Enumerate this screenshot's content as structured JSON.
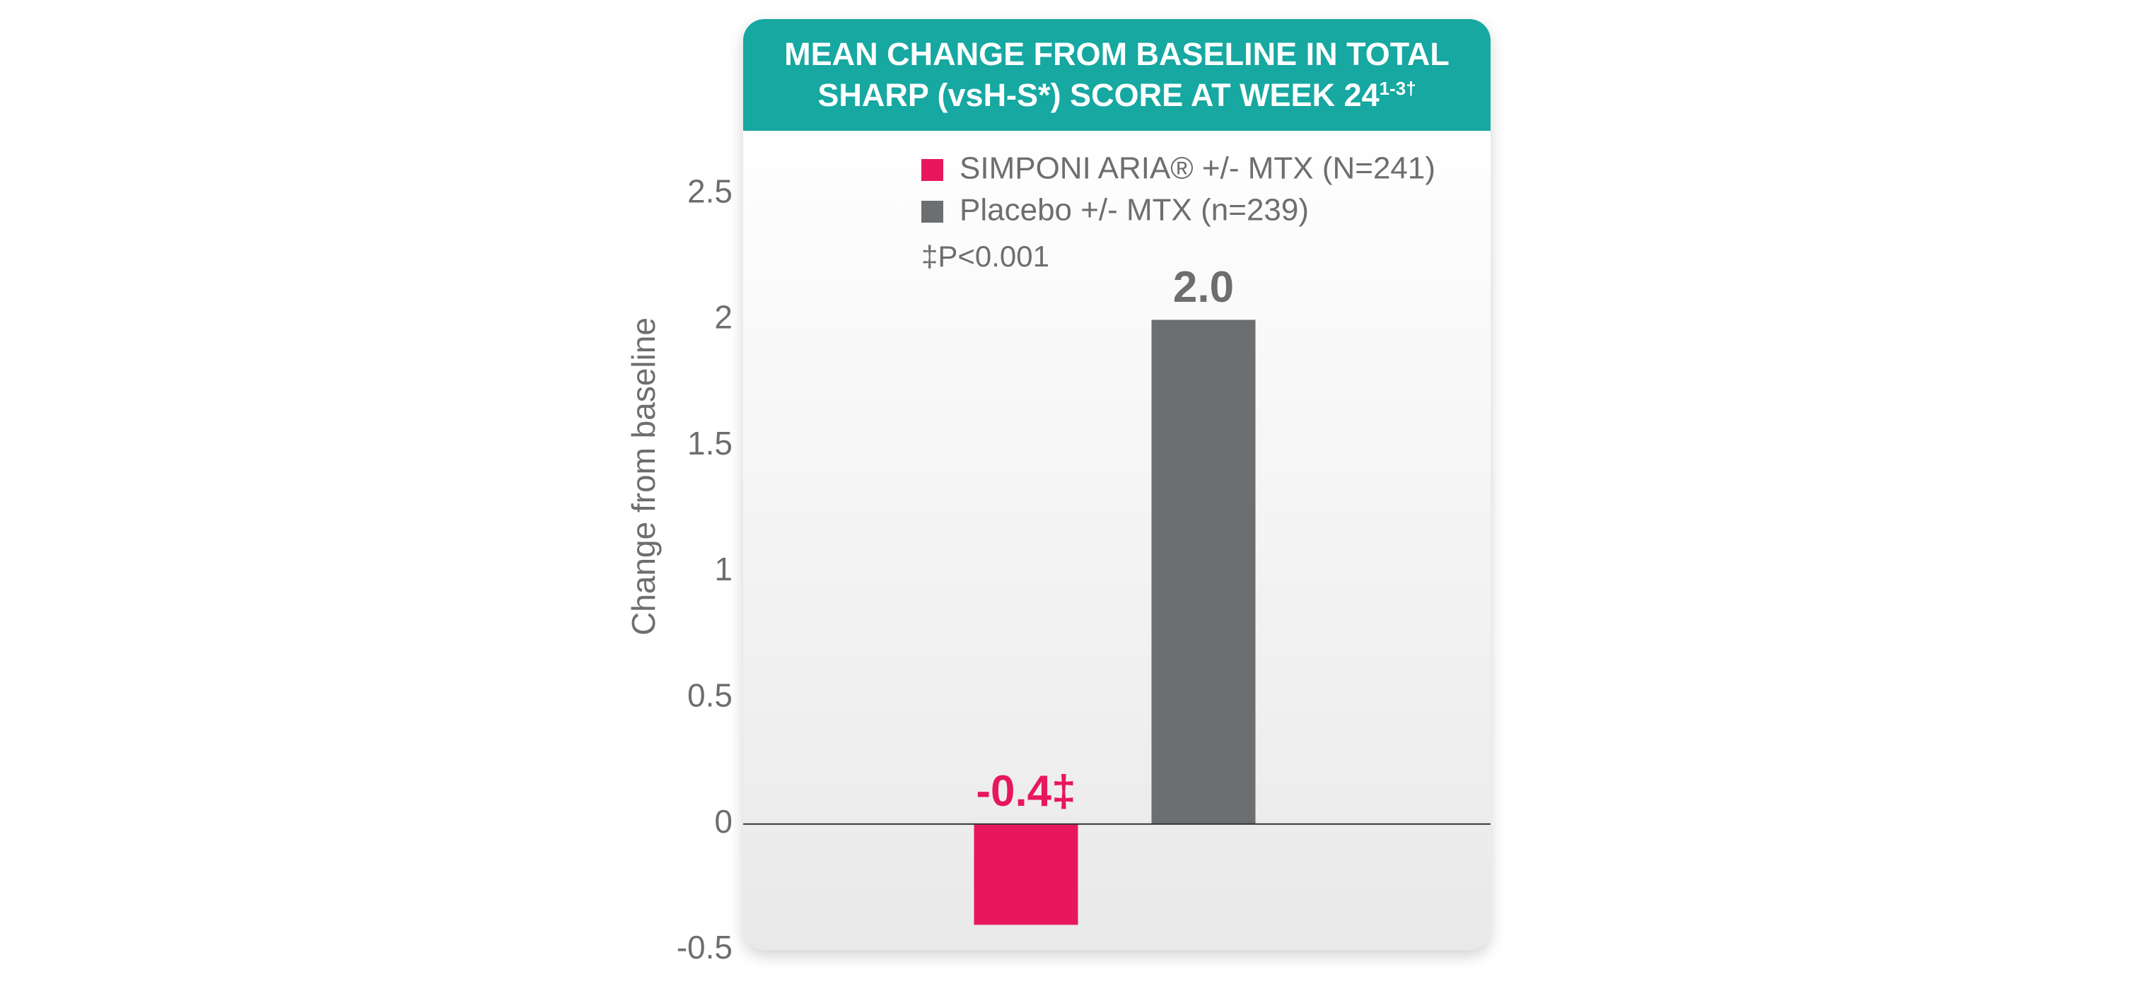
{
  "chart_data": {
    "type": "bar",
    "title": "MEAN CHANGE FROM BASELINE IN TOTAL SHARP (vsH-S*) SCORE AT WEEK 24",
    "title_superscript": "1-3†",
    "ylabel": "Change from baseline",
    "annotation": "‡P<0.001",
    "series": [
      {
        "name": "SIMPONI ARIA® +/- MTX (N=241)",
        "color": "#e8175d",
        "values": [
          -0.4
        ],
        "value_labels": [
          "-0.4‡"
        ]
      },
      {
        "name": "Placebo +/- MTX (n=239)",
        "color": "#6d6e70",
        "values": [
          2.0
        ],
        "value_labels": [
          "2.0"
        ]
      }
    ],
    "ylim": [
      -0.5,
      2.75
    ],
    "yticks": [
      -0.5,
      0,
      0.5,
      1,
      1.5,
      2,
      2.5
    ],
    "grid": false,
    "legend": "top-right"
  }
}
